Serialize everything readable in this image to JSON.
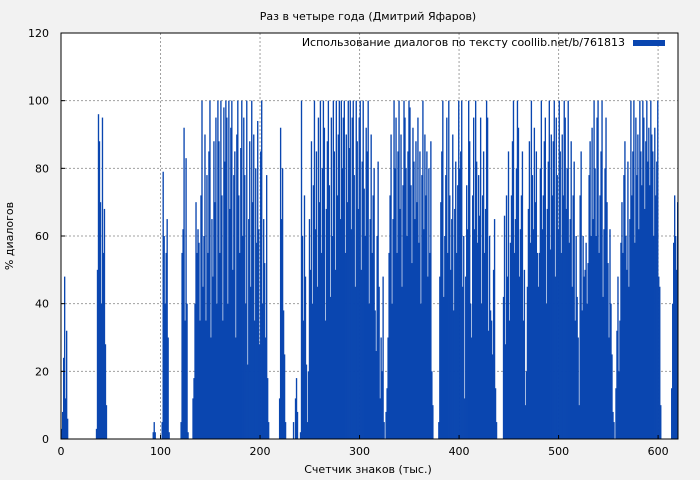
{
  "chart_data": {
    "type": "bar",
    "title": "Раз в четыре года (Дмитрий Яфаров)",
    "xlabel": "Счетчик знаков (тыс.)",
    "ylabel": "% диалогов",
    "xlim": [
      0,
      620
    ],
    "ylim": [
      0,
      120
    ],
    "x_ticks": [
      0,
      100,
      200,
      300,
      400,
      500,
      600
    ],
    "y_ticks": [
      0,
      20,
      40,
      60,
      80,
      100,
      120
    ],
    "grid": true,
    "legend_position": "top-right",
    "series": [
      {
        "name": "Использование диалогов по тексту coollib.net/b/761813",
        "color": "#0a46b0",
        "x": [
          0,
          1,
          2,
          3,
          4,
          5,
          6,
          7,
          8,
          9,
          10,
          11,
          12,
          13,
          14,
          15,
          16,
          17,
          18,
          19,
          20,
          21,
          22,
          23,
          24,
          25,
          26,
          27,
          28,
          29,
          30,
          31,
          32,
          33,
          34,
          35,
          36,
          37,
          38,
          39,
          40,
          41,
          42,
          43,
          44,
          45,
          46,
          47,
          48,
          49,
          50,
          51,
          52,
          53,
          54,
          55,
          56,
          57,
          58,
          59,
          60,
          61,
          62,
          63,
          64,
          65,
          66,
          67,
          68,
          69,
          70,
          71,
          72,
          73,
          74,
          75,
          76,
          77,
          78,
          79,
          80,
          81,
          82,
          83,
          84,
          85,
          86,
          87,
          88,
          89,
          90,
          91,
          92,
          93,
          94,
          95,
          96,
          97,
          98,
          99,
          100,
          101,
          102,
          103,
          104,
          105,
          106,
          107,
          108,
          109,
          110,
          111,
          112,
          113,
          114,
          115,
          116,
          117,
          118,
          119,
          120,
          121,
          122,
          123,
          124,
          125,
          126,
          127,
          128,
          129,
          130,
          131,
          132,
          133,
          134,
          135,
          136,
          137,
          138,
          139,
          140,
          141,
          142,
          143,
          144,
          145,
          146,
          147,
          148,
          149,
          150,
          151,
          152,
          153,
          154,
          155,
          156,
          157,
          158,
          159,
          160,
          161,
          162,
          163,
          164,
          165,
          166,
          167,
          168,
          169,
          170,
          171,
          172,
          173,
          174,
          175,
          176,
          177,
          178,
          179,
          180,
          181,
          182,
          183,
          184,
          185,
          186,
          187,
          188,
          189,
          190,
          191,
          192,
          193,
          194,
          195,
          196,
          197,
          198,
          199,
          200,
          201,
          202,
          203,
          204,
          205,
          206,
          207,
          208,
          209,
          210,
          211,
          212,
          213,
          214,
          215,
          216,
          217,
          218,
          219,
          220,
          221,
          222,
          223,
          224,
          225,
          226,
          227,
          228,
          229,
          230,
          231,
          232,
          233,
          234,
          235,
          236,
          237,
          238,
          239,
          240,
          241,
          242,
          243,
          244,
          245,
          246,
          247,
          248,
          249,
          250,
          251,
          252,
          253,
          254,
          255,
          256,
          257,
          258,
          259,
          260,
          261,
          262,
          263,
          264,
          265,
          266,
          267,
          268,
          269,
          270,
          271,
          272,
          273,
          274,
          275,
          276,
          277,
          278,
          279,
          280,
          281,
          282,
          283,
          284,
          285,
          286,
          287,
          288,
          289,
          290,
          291,
          292,
          293,
          294,
          295,
          296,
          297,
          298,
          299,
          300,
          301,
          302,
          303,
          304,
          305,
          306,
          307,
          308,
          309,
          310,
          311,
          312,
          313,
          314,
          315,
          316,
          317,
          318,
          319,
          320,
          321,
          322,
          323,
          324,
          325,
          326,
          327,
          328,
          329,
          330,
          331,
          332,
          333,
          334,
          335,
          336,
          337,
          338,
          339,
          340,
          341,
          342,
          343,
          344,
          345,
          346,
          347,
          348,
          349,
          350,
          351,
          352,
          353,
          354,
          355,
          356,
          357,
          358,
          359,
          360,
          361,
          362,
          363,
          364,
          365,
          366,
          367,
          368,
          369,
          370,
          371,
          372,
          373,
          374,
          375,
          376,
          377,
          378,
          379,
          380,
          381,
          382,
          383,
          384,
          385,
          386,
          387,
          388,
          389,
          390,
          391,
          392,
          393,
          394,
          395,
          396,
          397,
          398,
          399,
          400,
          401,
          402,
          403,
          404,
          405,
          406,
          407,
          408,
          409,
          410,
          411,
          412,
          413,
          414,
          415,
          416,
          417,
          418,
          419,
          420,
          421,
          422,
          423,
          424,
          425,
          426,
          427,
          428,
          429,
          430,
          431,
          432,
          433,
          434,
          435,
          436,
          437,
          438,
          439,
          440,
          441,
          442,
          443,
          444,
          445,
          446,
          447,
          448,
          449,
          450,
          451,
          452,
          453,
          454,
          455,
          456,
          457,
          458,
          459,
          460,
          461,
          462,
          463,
          464,
          465,
          466,
          467,
          468,
          469,
          470,
          471,
          472,
          473,
          474,
          475,
          476,
          477,
          478,
          479,
          480,
          481,
          482,
          483,
          484,
          485,
          486,
          487,
          488,
          489,
          490,
          491,
          492,
          493,
          494,
          495,
          496,
          497,
          498,
          499,
          500,
          501,
          502,
          503,
          504,
          505,
          506,
          507,
          508,
          509,
          510,
          511,
          512,
          513,
          514,
          515,
          516,
          517,
          518,
          519,
          520,
          521,
          522,
          523,
          524,
          525,
          526,
          527,
          528,
          529,
          530,
          531,
          532,
          533,
          534,
          535,
          536,
          537,
          538,
          539,
          540,
          541,
          542,
          543,
          544,
          545,
          546,
          547,
          548,
          549,
          550,
          551,
          552,
          553,
          554,
          555,
          556,
          557,
          558,
          559,
          560,
          561,
          562,
          563,
          564,
          565,
          566,
          567,
          568,
          569,
          570,
          571,
          572,
          573,
          574,
          575,
          576,
          577,
          578,
          579,
          580,
          581,
          582,
          583,
          584,
          585,
          586,
          587,
          588,
          589,
          590,
          591,
          592,
          593,
          594,
          595,
          596,
          597,
          598,
          599,
          600,
          601,
          602,
          603,
          604,
          605,
          606,
          607,
          608,
          609,
          610,
          611,
          612,
          613,
          614,
          615,
          616,
          617,
          618,
          619
        ],
        "values": [
          3,
          8,
          24,
          48,
          12,
          32,
          6,
          0,
          0,
          0,
          0,
          0,
          0,
          0,
          0,
          0,
          0,
          0,
          0,
          0,
          0,
          0,
          0,
          0,
          0,
          0,
          0,
          0,
          0,
          0,
          0,
          0,
          0,
          0,
          0,
          3,
          50,
          96,
          88,
          70,
          40,
          95,
          55,
          68,
          28,
          10,
          0,
          0,
          0,
          0,
          0,
          0,
          0,
          0,
          0,
          0,
          0,
          0,
          0,
          0,
          0,
          0,
          0,
          0,
          0,
          0,
          0,
          0,
          0,
          0,
          0,
          0,
          0,
          0,
          0,
          0,
          0,
          0,
          0,
          0,
          0,
          0,
          0,
          0,
          0,
          0,
          0,
          0,
          0,
          0,
          0,
          0,
          2,
          5,
          2,
          0,
          0,
          0,
          0,
          0,
          0,
          5,
          79,
          60,
          40,
          55,
          65,
          30,
          2,
          0,
          0,
          0,
          0,
          0,
          0,
          0,
          0,
          0,
          0,
          0,
          5,
          55,
          62,
          92,
          35,
          83,
          40,
          2,
          0,
          0,
          0,
          0,
          12,
          18,
          40,
          70,
          55,
          62,
          58,
          35,
          72,
          100,
          45,
          60,
          90,
          35,
          78,
          55,
          85,
          100,
          30,
          65,
          48,
          88,
          70,
          95,
          40,
          100,
          88,
          55,
          100,
          72,
          35,
          98,
          82,
          100,
          95,
          40,
          100,
          68,
          92,
          100,
          50,
          78,
          85,
          30,
          90,
          100,
          72,
          55,
          86,
          100,
          60,
          95,
          78,
          40,
          100,
          22,
          65,
          88,
          45,
          100,
          70,
          90,
          35,
          80,
          58,
          94,
          62,
          28,
          85,
          100,
          40,
          65,
          52,
          30,
          78,
          18,
          5,
          0,
          0,
          0,
          0,
          0,
          0,
          0,
          0,
          0,
          0,
          12,
          92,
          65,
          80,
          38,
          25,
          5,
          0,
          0,
          0,
          0,
          0,
          0,
          0,
          5,
          0,
          12,
          18,
          8,
          0,
          0,
          2,
          100,
          60,
          35,
          72,
          48,
          22,
          5,
          20,
          65,
          50,
          88,
          40,
          75,
          100,
          62,
          85,
          45,
          95,
          70,
          100,
          55,
          80,
          100,
          92,
          35,
          68,
          88,
          100,
          75,
          42,
          95,
          60,
          100,
          85,
          50,
          100,
          72,
          90,
          100,
          65,
          100,
          80,
          95,
          100,
          55,
          90,
          70,
          100,
          86,
          100,
          62,
          95,
          100,
          78,
          45,
          100,
          88,
          68,
          95,
          100,
          50,
          82,
          100,
          74,
          60,
          92,
          85,
          100,
          40,
          65,
          90,
          55,
          72,
          80,
          38,
          26,
          60,
          82,
          45,
          12,
          30,
          20,
          48,
          5,
          0,
          8,
          15,
          30,
          55,
          72,
          90,
          40,
          65,
          100,
          80,
          95,
          55,
          85,
          100,
          68,
          90,
          45,
          75,
          100,
          95,
          80,
          60,
          85,
          100,
          98,
          75,
          52,
          92,
          82,
          65,
          88,
          70,
          95,
          58,
          85,
          40,
          78,
          100,
          62,
          90,
          72,
          85,
          48,
          80,
          55,
          88,
          20,
          10,
          0,
          0,
          0,
          0,
          0,
          5,
          48,
          70,
          85,
          100,
          42,
          60,
          78,
          95,
          55,
          100,
          72,
          50,
          65,
          90,
          38,
          68,
          82,
          55,
          75,
          100,
          80,
          85,
          100,
          45,
          60,
          12,
          48,
          75,
          62,
          100,
          88,
          40,
          30,
          72,
          95,
          62,
          100,
          82,
          58,
          78,
          66,
          95,
          40,
          72,
          85,
          55,
          68,
          100,
          95,
          32,
          60,
          38,
          35,
          25,
          50,
          65,
          15,
          5,
          0,
          0,
          0,
          0,
          0,
          0,
          42,
          66,
          28,
          72,
          48,
          85,
          35,
          58,
          72,
          88,
          100,
          55,
          65,
          80,
          100,
          92,
          48,
          62,
          72,
          85,
          35,
          50,
          10,
          20,
          45,
          68,
          88,
          58,
          100,
          78,
          62,
          92,
          70,
          85,
          55,
          45,
          55,
          80,
          100,
          62,
          72,
          88,
          95,
          40,
          68,
          82,
          100,
          56,
          90,
          72,
          88,
          100,
          48,
          95,
          78,
          62,
          100,
          85,
          55,
          90,
          72,
          100,
          95,
          68,
          80,
          100,
          58,
          65,
          88,
          45,
          72,
          82,
          35,
          60,
          42,
          30,
          10,
          72,
          85,
          38,
          60,
          48,
          50,
          58,
          40,
          52,
          78,
          88,
          60,
          92,
          65,
          100,
          80,
          60,
          95,
          100,
          55,
          72,
          85,
          100,
          42,
          62,
          80,
          95,
          70,
          52,
          30,
          62,
          40,
          25,
          8,
          5,
          0,
          15,
          32,
          48,
          20,
          35,
          58,
          70,
          55,
          78,
          88,
          60,
          50,
          82,
          45,
          65,
          100,
          72,
          85,
          100,
          58,
          95,
          78,
          90,
          62,
          100,
          85,
          75,
          100,
          95,
          68,
          88,
          100,
          82,
          92,
          75,
          100,
          90,
          85,
          60,
          92,
          72,
          82,
          100,
          48,
          45,
          10,
          0,
          0,
          0,
          0,
          0,
          0,
          0,
          0,
          0,
          0,
          15,
          40,
          58,
          72,
          60,
          50,
          70
        ]
      }
    ]
  }
}
